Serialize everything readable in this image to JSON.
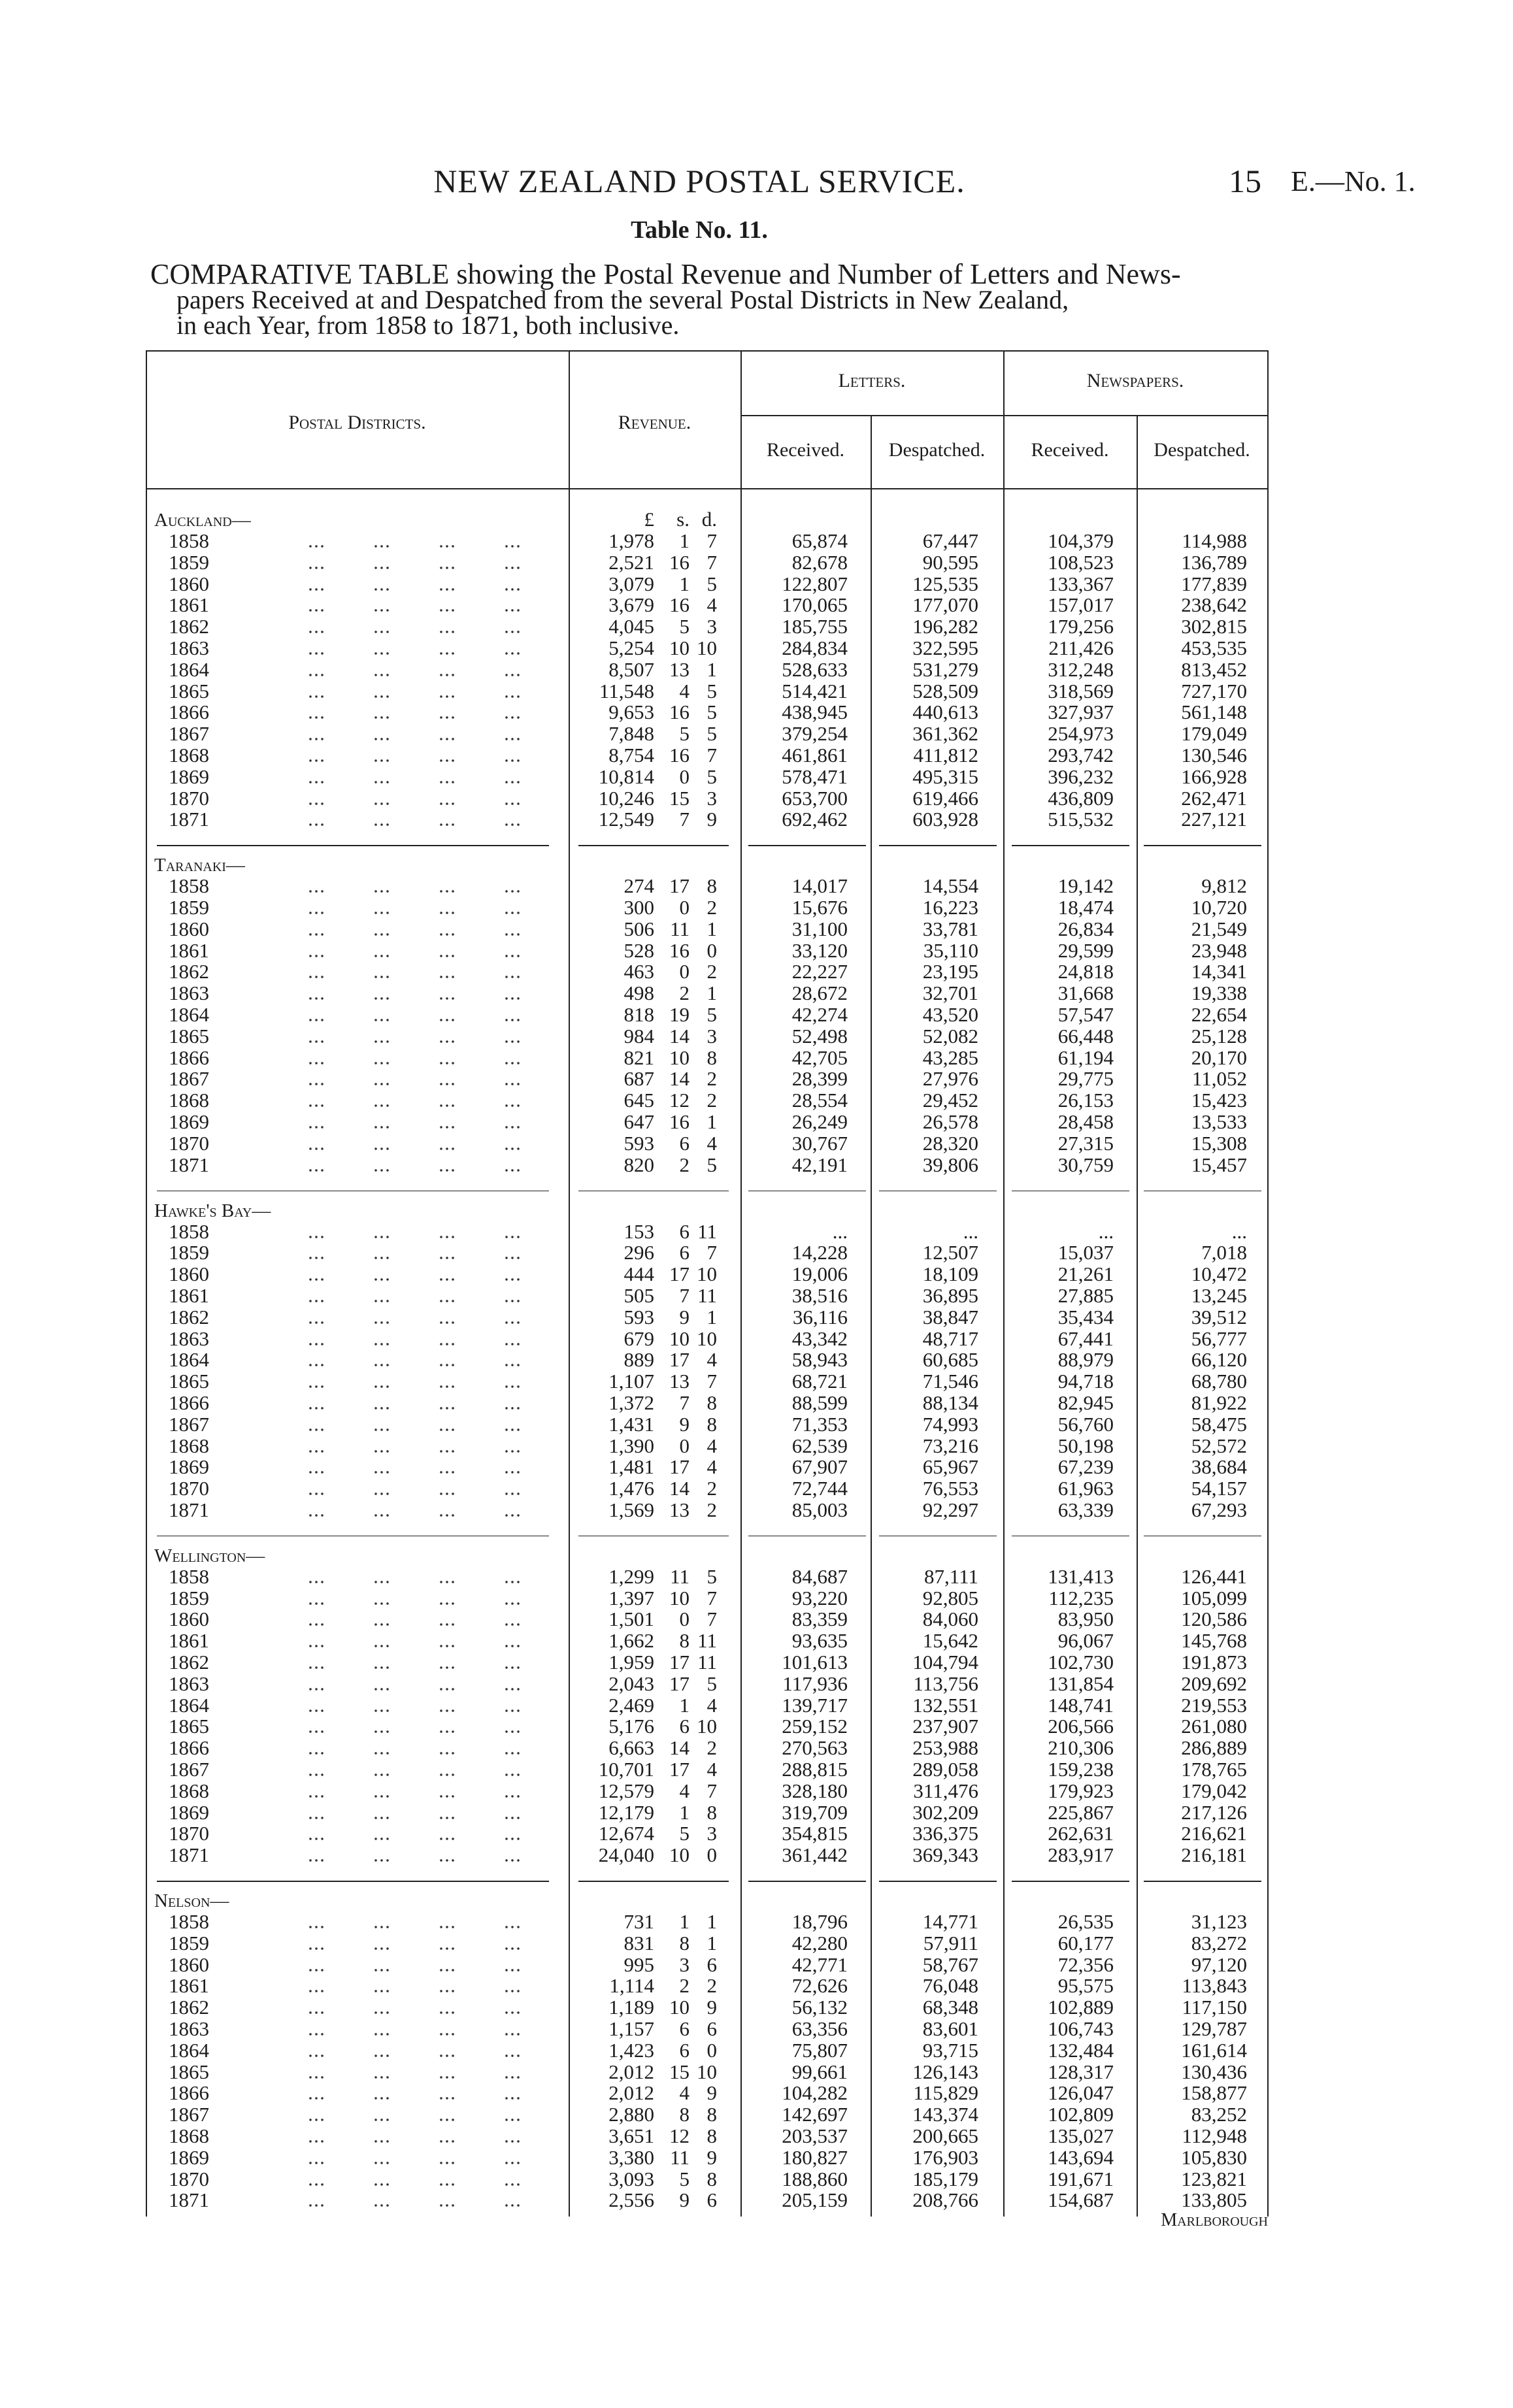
{
  "header": {
    "title": "NEW ZEALAND POSTAL SERVICE.",
    "page_number": "15",
    "doc_ref": "E.—No. 1."
  },
  "table_no": "Table No. 11.",
  "caption": {
    "line1": "COMPARATIVE TABLE showing the Postal Revenue and Number of Letters and News-",
    "line2": "papers Received at and Despatched from the several Postal Districts in New Zealand,",
    "line3": "in each Year, from 1858 to 1871, both inclusive."
  },
  "table": {
    "headers": {
      "districts": "Postal Districts.",
      "revenue": "Revenue.",
      "letters": "Letters.",
      "newspapers": "Newspapers.",
      "received": "Received.",
      "despatched": "Despatched."
    },
    "revenue_units": {
      "pounds": "£",
      "shillings": "s.",
      "pence": "d."
    },
    "columns": [
      "year",
      "pounds",
      "shillings",
      "pence",
      "letters_received",
      "letters_despatched",
      "newspapers_received",
      "newspapers_despatched"
    ],
    "districts": [
      {
        "name": "Auckland—",
        "rows": [
          [
            "1858",
            "1,978",
            "1",
            "7",
            "65,874",
            "67,447",
            "104,379",
            "114,988"
          ],
          [
            "1859",
            "2,521",
            "16",
            "7",
            "82,678",
            "90,595",
            "108,523",
            "136,789"
          ],
          [
            "1860",
            "3,079",
            "1",
            "5",
            "122,807",
            "125,535",
            "133,367",
            "177,839"
          ],
          [
            "1861",
            "3,679",
            "16",
            "4",
            "170,065",
            "177,070",
            "157,017",
            "238,642"
          ],
          [
            "1862",
            "4,045",
            "5",
            "3",
            "185,755",
            "196,282",
            "179,256",
            "302,815"
          ],
          [
            "1863",
            "5,254",
            "10",
            "10",
            "284,834",
            "322,595",
            "211,426",
            "453,535"
          ],
          [
            "1864",
            "8,507",
            "13",
            "1",
            "528,633",
            "531,279",
            "312,248",
            "813,452"
          ],
          [
            "1865",
            "11,548",
            "4",
            "5",
            "514,421",
            "528,509",
            "318,569",
            "727,170"
          ],
          [
            "1866",
            "9,653",
            "16",
            "5",
            "438,945",
            "440,613",
            "327,937",
            "561,148"
          ],
          [
            "1867",
            "7,848",
            "5",
            "5",
            "379,254",
            "361,362",
            "254,973",
            "179,049"
          ],
          [
            "1868",
            "8,754",
            "16",
            "7",
            "461,861",
            "411,812",
            "293,742",
            "130,546"
          ],
          [
            "1869",
            "10,814",
            "0",
            "5",
            "578,471",
            "495,315",
            "396,232",
            "166,928"
          ],
          [
            "1870",
            "10,246",
            "15",
            "3",
            "653,700",
            "619,466",
            "436,809",
            "262,471"
          ],
          [
            "1871",
            "12,549",
            "7",
            "9",
            "692,462",
            "603,928",
            "515,532",
            "227,121"
          ]
        ]
      },
      {
        "name": "Taranaki—",
        "rows": [
          [
            "1858",
            "274",
            "17",
            "8",
            "14,017",
            "14,554",
            "19,142",
            "9,812"
          ],
          [
            "1859",
            "300",
            "0",
            "2",
            "15,676",
            "16,223",
            "18,474",
            "10,720"
          ],
          [
            "1860",
            "506",
            "11",
            "1",
            "31,100",
            "33,781",
            "26,834",
            "21,549"
          ],
          [
            "1861",
            "528",
            "16",
            "0",
            "33,120",
            "35,110",
            "29,599",
            "23,948"
          ],
          [
            "1862",
            "463",
            "0",
            "2",
            "22,227",
            "23,195",
            "24,818",
            "14,341"
          ],
          [
            "1863",
            "498",
            "2",
            "1",
            "28,672",
            "32,701",
            "31,668",
            "19,338"
          ],
          [
            "1864",
            "818",
            "19",
            "5",
            "42,274",
            "43,520",
            "57,547",
            "22,654"
          ],
          [
            "1865",
            "984",
            "14",
            "3",
            "52,498",
            "52,082",
            "66,448",
            "25,128"
          ],
          [
            "1866",
            "821",
            "10",
            "8",
            "42,705",
            "43,285",
            "61,194",
            "20,170"
          ],
          [
            "1867",
            "687",
            "14",
            "2",
            "28,399",
            "27,976",
            "29,775",
            "11,052"
          ],
          [
            "1868",
            "645",
            "12",
            "2",
            "28,554",
            "29,452",
            "26,153",
            "15,423"
          ],
          [
            "1869",
            "647",
            "16",
            "1",
            "26,249",
            "26,578",
            "28,458",
            "13,533"
          ],
          [
            "1870",
            "593",
            "6",
            "4",
            "30,767",
            "28,320",
            "27,315",
            "15,308"
          ],
          [
            "1871",
            "820",
            "2",
            "5",
            "42,191",
            "39,806",
            "30,759",
            "15,457"
          ]
        ]
      },
      {
        "name": "Hawke's Bay—",
        "rows": [
          [
            "1858",
            "153",
            "6",
            "11",
            "...",
            "...",
            "...",
            "..."
          ],
          [
            "1859",
            "296",
            "6",
            "7",
            "14,228",
            "12,507",
            "15,037",
            "7,018"
          ],
          [
            "1860",
            "444",
            "17",
            "10",
            "19,006",
            "18,109",
            "21,261",
            "10,472"
          ],
          [
            "1861",
            "505",
            "7",
            "11",
            "38,516",
            "36,895",
            "27,885",
            "13,245"
          ],
          [
            "1862",
            "593",
            "9",
            "1",
            "36,116",
            "38,847",
            "35,434",
            "39,512"
          ],
          [
            "1863",
            "679",
            "10",
            "10",
            "43,342",
            "48,717",
            "67,441",
            "56,777"
          ],
          [
            "1864",
            "889",
            "17",
            "4",
            "58,943",
            "60,685",
            "88,979",
            "66,120"
          ],
          [
            "1865",
            "1,107",
            "13",
            "7",
            "68,721",
            "71,546",
            "94,718",
            "68,780"
          ],
          [
            "1866",
            "1,372",
            "7",
            "8",
            "88,599",
            "88,134",
            "82,945",
            "81,922"
          ],
          [
            "1867",
            "1,431",
            "9",
            "8",
            "71,353",
            "74,993",
            "56,760",
            "58,475"
          ],
          [
            "1868",
            "1,390",
            "0",
            "4",
            "62,539",
            "73,216",
            "50,198",
            "52,572"
          ],
          [
            "1869",
            "1,481",
            "17",
            "4",
            "67,907",
            "65,967",
            "67,239",
            "38,684"
          ],
          [
            "1870",
            "1,476",
            "14",
            "2",
            "72,744",
            "76,553",
            "61,963",
            "54,157"
          ],
          [
            "1871",
            "1,569",
            "13",
            "2",
            "85,003",
            "92,297",
            "63,339",
            "67,293"
          ]
        ]
      },
      {
        "name": "Wellington—",
        "rows": [
          [
            "1858",
            "1,299",
            "11",
            "5",
            "84,687",
            "87,111",
            "131,413",
            "126,441"
          ],
          [
            "1859",
            "1,397",
            "10",
            "7",
            "93,220",
            "92,805",
            "112,235",
            "105,099"
          ],
          [
            "1860",
            "1,501",
            "0",
            "7",
            "83,359",
            "84,060",
            "83,950",
            "120,586"
          ],
          [
            "1861",
            "1,662",
            "8",
            "11",
            "93,635",
            "15,642",
            "96,067",
            "145,768"
          ],
          [
            "1862",
            "1,959",
            "17",
            "11",
            "101,613",
            "104,794",
            "102,730",
            "191,873"
          ],
          [
            "1863",
            "2,043",
            "17",
            "5",
            "117,936",
            "113,756",
            "131,854",
            "209,692"
          ],
          [
            "1864",
            "2,469",
            "1",
            "4",
            "139,717",
            "132,551",
            "148,741",
            "219,553"
          ],
          [
            "1865",
            "5,176",
            "6",
            "10",
            "259,152",
            "237,907",
            "206,566",
            "261,080"
          ],
          [
            "1866",
            "6,663",
            "14",
            "2",
            "270,563",
            "253,988",
            "210,306",
            "286,889"
          ],
          [
            "1867",
            "10,701",
            "17",
            "4",
            "288,815",
            "289,058",
            "159,238",
            "178,765"
          ],
          [
            "1868",
            "12,579",
            "4",
            "7",
            "328,180",
            "311,476",
            "179,923",
            "179,042"
          ],
          [
            "1869",
            "12,179",
            "1",
            "8",
            "319,709",
            "302,209",
            "225,867",
            "217,126"
          ],
          [
            "1870",
            "12,674",
            "5",
            "3",
            "354,815",
            "336,375",
            "262,631",
            "216,621"
          ],
          [
            "1871",
            "24,040",
            "10",
            "0",
            "361,442",
            "369,343",
            "283,917",
            "216,181"
          ]
        ]
      },
      {
        "name": "Nelson—",
        "rows": [
          [
            "1858",
            "731",
            "1",
            "1",
            "18,796",
            "14,771",
            "26,535",
            "31,123"
          ],
          [
            "1859",
            "831",
            "8",
            "1",
            "42,280",
            "57,911",
            "60,177",
            "83,272"
          ],
          [
            "1860",
            "995",
            "3",
            "6",
            "42,771",
            "58,767",
            "72,356",
            "97,120"
          ],
          [
            "1861",
            "1,114",
            "2",
            "2",
            "72,626",
            "76,048",
            "95,575",
            "113,843"
          ],
          [
            "1862",
            "1,189",
            "10",
            "9",
            "56,132",
            "68,348",
            "102,889",
            "117,150"
          ],
          [
            "1863",
            "1,157",
            "6",
            "6",
            "63,356",
            "83,601",
            "106,743",
            "129,787"
          ],
          [
            "1864",
            "1,423",
            "6",
            "0",
            "75,807",
            "93,715",
            "132,484",
            "161,614"
          ],
          [
            "1865",
            "2,012",
            "15",
            "10",
            "99,661",
            "126,143",
            "128,317",
            "130,436"
          ],
          [
            "1866",
            "2,012",
            "4",
            "9",
            "104,282",
            "115,829",
            "126,047",
            "158,877"
          ],
          [
            "1867",
            "2,880",
            "8",
            "8",
            "142,697",
            "143,374",
            "102,809",
            "83,252"
          ],
          [
            "1868",
            "3,651",
            "12",
            "8",
            "203,537",
            "200,665",
            "135,027",
            "112,948"
          ],
          [
            "1869",
            "3,380",
            "11",
            "9",
            "180,827",
            "176,903",
            "143,694",
            "105,830"
          ],
          [
            "1870",
            "3,093",
            "5",
            "8",
            "188,860",
            "185,179",
            "191,671",
            "123,821"
          ],
          [
            "1871",
            "2,556",
            "9",
            "6",
            "205,159",
            "208,766",
            "154,687",
            "133,805"
          ]
        ]
      }
    ]
  },
  "footer": {
    "catchword": "Marlborough"
  }
}
